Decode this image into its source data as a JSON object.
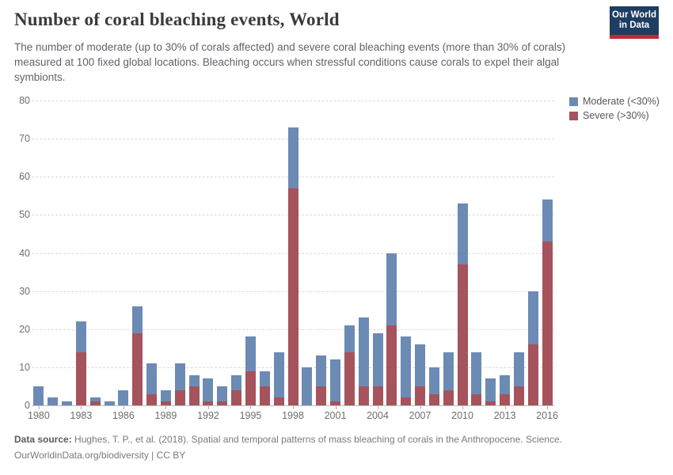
{
  "header": {
    "title": "Number of coral bleaching events, World",
    "logo": {
      "line1": "Our World",
      "line2": "in Data"
    }
  },
  "subtitle": "The number of moderate (up to 30% of corals affected) and severe coral bleaching events (more than 30% of corals) measured at 100 fixed global locations. Bleaching occurs when stressful conditions cause corals to expel their algal symbionts.",
  "chart_data": {
    "type": "bar",
    "stacked": true,
    "title": "Number of coral bleaching events, World",
    "categories": [
      1980,
      1981,
      1982,
      1983,
      1984,
      1985,
      1986,
      1987,
      1988,
      1989,
      1990,
      1991,
      1992,
      1993,
      1994,
      1995,
      1996,
      1997,
      1998,
      1999,
      2000,
      2001,
      2002,
      2003,
      2004,
      2005,
      2006,
      2007,
      2008,
      2009,
      2010,
      2011,
      2012,
      2013,
      2014,
      2015,
      2016
    ],
    "series": [
      {
        "name": "Severe (>30%)",
        "color": "#a5535c",
        "values": [
          0,
          0,
          0,
          14,
          1,
          0,
          0,
          19,
          3,
          1,
          4,
          5,
          1,
          1,
          4,
          9,
          5,
          2,
          57,
          0,
          5,
          1,
          14,
          5,
          5,
          21,
          2,
          5,
          3,
          4,
          37,
          3,
          1,
          3,
          5,
          16,
          43
        ]
      },
      {
        "name": "Moderate (<30%)",
        "color": "#6c8bb4",
        "values": [
          5,
          2,
          1,
          8,
          1,
          1,
          4,
          7,
          8,
          3,
          7,
          3,
          6,
          4,
          4,
          9,
          4,
          12,
          16,
          10,
          8,
          11,
          7,
          18,
          14,
          19,
          16,
          11,
          7,
          10,
          16,
          11,
          6,
          5,
          9,
          14,
          11
        ]
      }
    ],
    "totals": [
      5,
      2,
      1,
      22,
      2,
      1,
      4,
      26,
      11,
      4,
      11,
      8,
      7,
      5,
      8,
      18,
      9,
      14,
      73,
      10,
      13,
      12,
      21,
      23,
      19,
      40,
      18,
      16,
      10,
      14,
      53,
      14,
      7,
      8,
      14,
      30,
      54
    ],
    "legend": [
      {
        "label": "Moderate (<30%)",
        "color": "#6c8bb4"
      },
      {
        "label": "Severe (>30%)",
        "color": "#a5535c"
      }
    ],
    "legend_position": "top-right",
    "xlabel": "",
    "ylabel": "",
    "ylim": [
      0,
      80
    ],
    "yticks": [
      0,
      10,
      20,
      30,
      40,
      50,
      60,
      70,
      80
    ],
    "xticks": [
      1980,
      1983,
      1986,
      1989,
      1992,
      1995,
      1998,
      2001,
      2004,
      2007,
      2010,
      2013,
      2016
    ],
    "grid": "horizontal-dashed"
  },
  "footer": {
    "source_label": "Data source:",
    "source_text": " Hughes, T. P., et al. (2018). Spatial and temporal patterns of mass bleaching of corals in the Anthropocene. Science.",
    "line2": "OurWorldinData.org/biodiversity | CC BY"
  },
  "colors": {
    "moderate": "#6c8bb4",
    "severe": "#a5535c",
    "logo_background": "#1d3d63",
    "logo_accent": "#c0293a"
  }
}
